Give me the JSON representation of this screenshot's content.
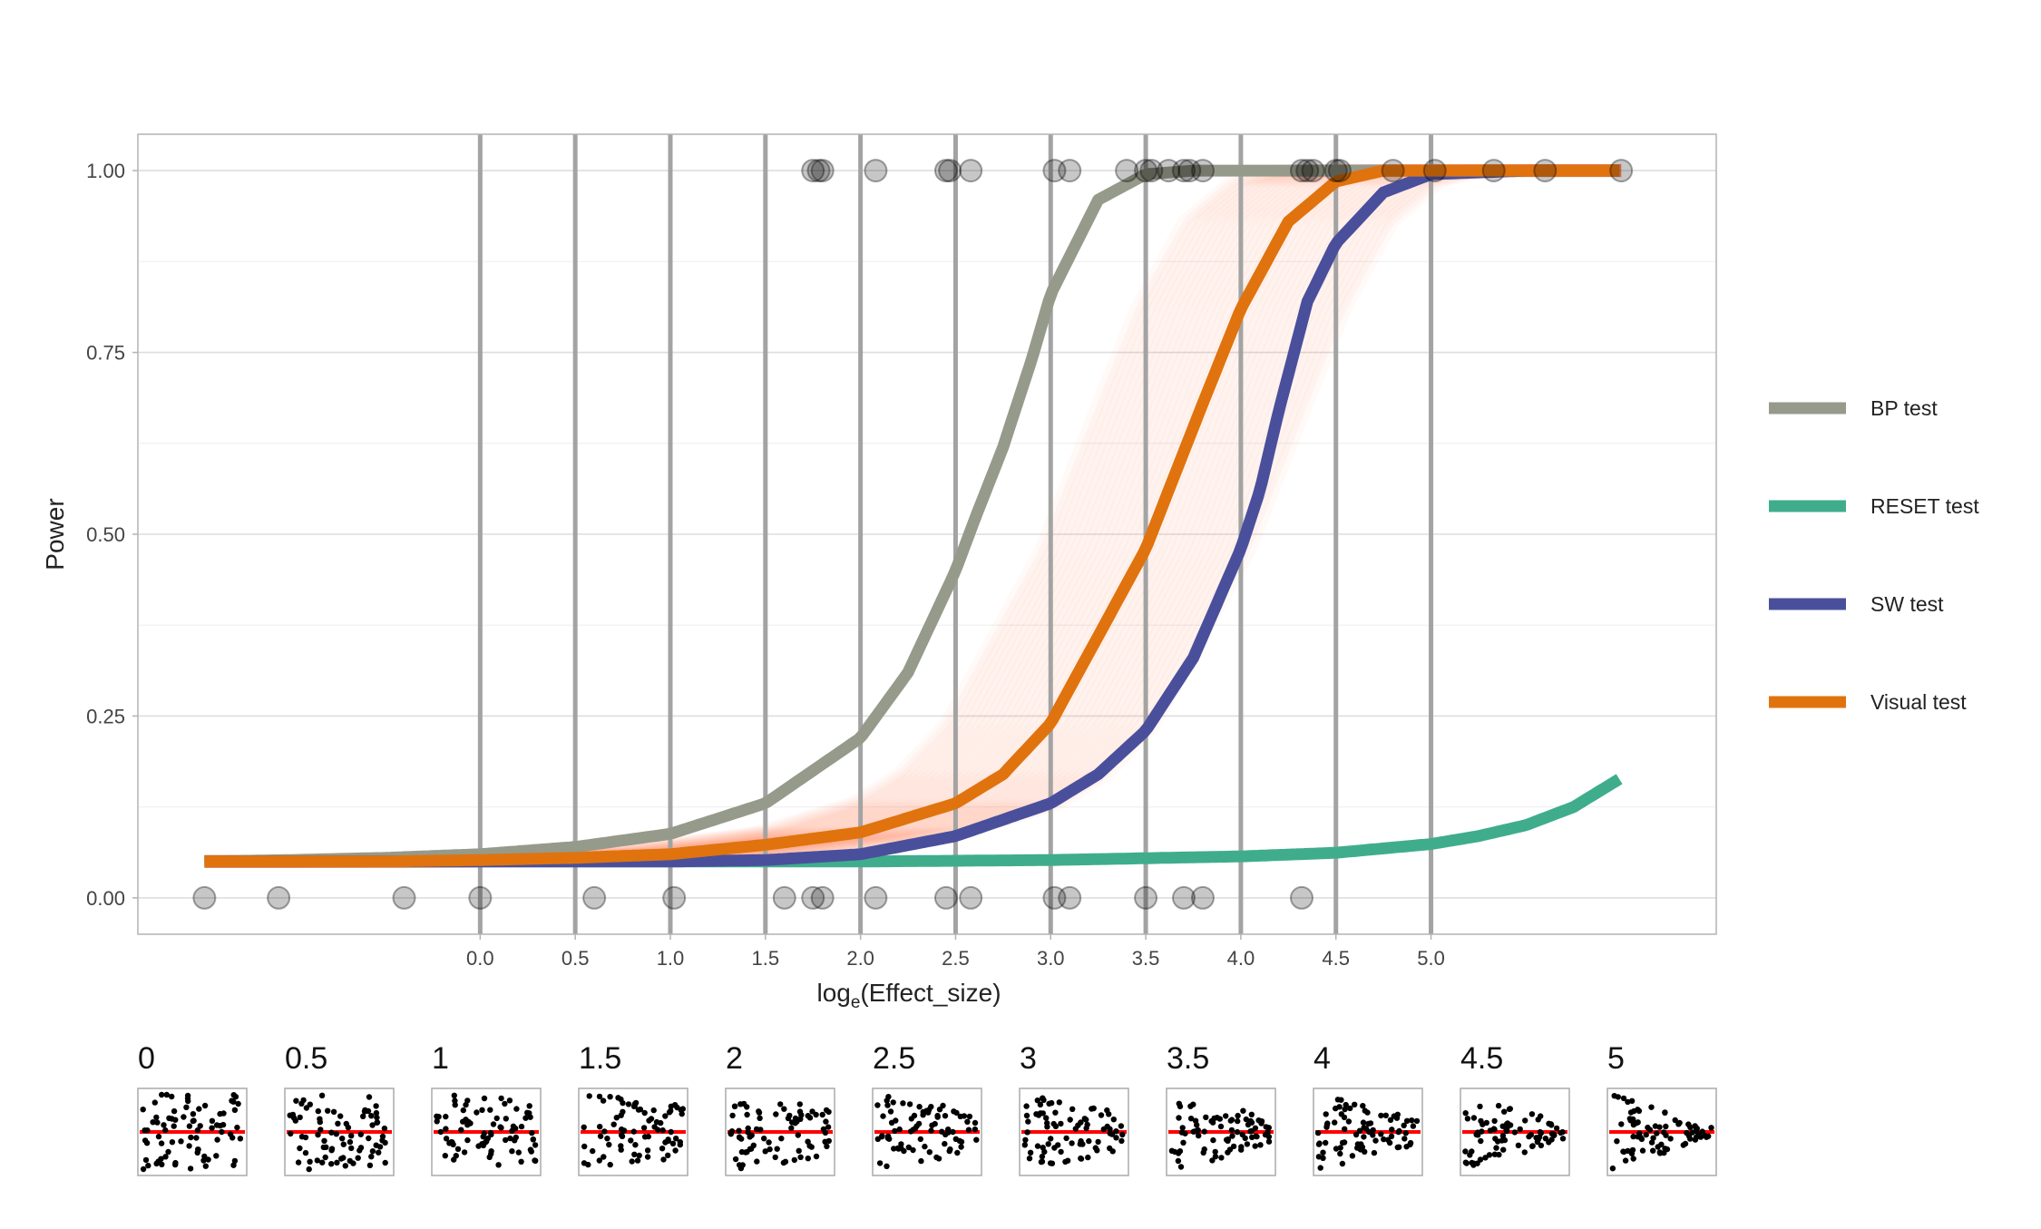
{
  "chart_data": {
    "type": "line",
    "xlabel_main": "log",
    "xlabel_sub": "e",
    "xlabel_rest": "(Effect_size)",
    "ylabel": "Power",
    "xlim": [
      -1.8,
      6.5
    ],
    "ylim": [
      -0.05,
      1.05
    ],
    "x_ticks": [
      {
        "value": 0,
        "label": "0.0"
      },
      {
        "value": 0.5,
        "label": "0.5"
      },
      {
        "value": 1,
        "label": "1.0"
      },
      {
        "value": 1.5,
        "label": "1.5"
      },
      {
        "value": 2,
        "label": "2.0"
      },
      {
        "value": 2.5,
        "label": "2.5"
      },
      {
        "value": 3,
        "label": "3.0"
      },
      {
        "value": 3.5,
        "label": "3.5"
      },
      {
        "value": 4,
        "label": "4.0"
      },
      {
        "value": 4.5,
        "label": "4.5"
      },
      {
        "value": 5,
        "label": "5.0"
      }
    ],
    "y_ticks": [
      {
        "value": 0,
        "label": "0.00"
      },
      {
        "value": 0.25,
        "label": "0.25"
      },
      {
        "value": 0.5,
        "label": "0.50"
      },
      {
        "value": 0.75,
        "label": "0.75"
      },
      {
        "value": 1,
        "label": "1.00"
      }
    ],
    "y_minor_ticks": [
      0.125,
      0.375,
      0.625,
      0.875
    ],
    "vlines": [
      0,
      0.5,
      1,
      1.5,
      2,
      2.5,
      3,
      3.5,
      4,
      4.5,
      5
    ],
    "legend_position": "right",
    "series": [
      {
        "name": "BP test",
        "color": "#969A8A",
        "x": [
          -1.45,
          -1.0,
          -0.5,
          0.0,
          0.5,
          1.0,
          1.5,
          2.0,
          2.25,
          2.5,
          2.6,
          2.75,
          2.9,
          3.0,
          3.25,
          3.5,
          3.75,
          4.0,
          4.5,
          5.0,
          5.5,
          6.0
        ],
        "y": [
          0.05,
          0.052,
          0.055,
          0.06,
          0.07,
          0.088,
          0.13,
          0.22,
          0.31,
          0.45,
          0.52,
          0.62,
          0.74,
          0.83,
          0.96,
          0.995,
          1.0,
          1.0,
          1.0,
          1.0,
          1.0,
          1.0
        ]
      },
      {
        "name": "RESET test",
        "color": "#3FAD8C",
        "x": [
          -1.45,
          -0.5,
          0.5,
          1.0,
          2.0,
          3.0,
          4.0,
          4.5,
          5.0,
          5.25,
          5.5,
          5.75,
          6.0
        ],
        "y": [
          0.05,
          0.05,
          0.05,
          0.05,
          0.05,
          0.052,
          0.057,
          0.062,
          0.074,
          0.085,
          0.1,
          0.125,
          0.165
        ]
      },
      {
        "name": "SW test",
        "color": "#4A4F9C",
        "x": [
          -1.45,
          -0.5,
          0.5,
          1.0,
          1.5,
          2.0,
          2.5,
          3.0,
          3.25,
          3.5,
          3.75,
          3.9,
          4.0,
          4.1,
          4.2,
          4.35,
          4.5,
          4.75,
          5.0,
          5.5,
          6.0
        ],
        "y": [
          0.05,
          0.05,
          0.05,
          0.05,
          0.052,
          0.06,
          0.085,
          0.13,
          0.17,
          0.23,
          0.33,
          0.42,
          0.48,
          0.56,
          0.67,
          0.82,
          0.9,
          0.97,
          0.995,
          1.0,
          1.0
        ]
      },
      {
        "name": "Visual test",
        "color": "#E0730E",
        "x": [
          -1.45,
          -0.5,
          0.0,
          0.5,
          1.0,
          1.5,
          2.0,
          2.5,
          2.75,
          3.0,
          3.25,
          3.5,
          3.65,
          3.8,
          4.0,
          4.25,
          4.5,
          4.75,
          5.0,
          5.5,
          6.0
        ],
        "y": [
          0.05,
          0.05,
          0.052,
          0.055,
          0.06,
          0.073,
          0.09,
          0.13,
          0.17,
          0.24,
          0.36,
          0.48,
          0.58,
          0.68,
          0.81,
          0.93,
          0.985,
          1.0,
          1.0,
          1.0,
          1.0
        ]
      }
    ],
    "uncertainty_band": {
      "name": "Visual test bootstrap",
      "color": "#FF7F3C",
      "center_shift_min": -0.55,
      "center_shift_max": 0.55,
      "curves": 36
    },
    "points_power1": [
      1.75,
      1.78,
      1.8,
      2.08,
      2.45,
      2.47,
      2.58,
      3.02,
      3.1,
      3.4,
      3.5,
      3.53,
      3.62,
      3.7,
      3.73,
      3.8,
      4.32,
      4.35,
      4.38,
      4.5,
      4.52,
      4.8,
      5.02,
      5.33,
      5.6,
      6.0
    ],
    "points_power0": [
      -1.45,
      -1.06,
      -0.4,
      0.0,
      0.6,
      1.02,
      1.6,
      1.75,
      1.8,
      2.08,
      2.45,
      2.58,
      3.02,
      3.1,
      3.5,
      3.7,
      3.8,
      4.32
    ]
  },
  "thumbnails": {
    "labels": [
      "0",
      "0.5",
      "1",
      "1.5",
      "2",
      "2.5",
      "3",
      "3.5",
      "4",
      "4.5",
      "5"
    ],
    "line_color": "#FF0000",
    "dot_color": "#000000"
  }
}
